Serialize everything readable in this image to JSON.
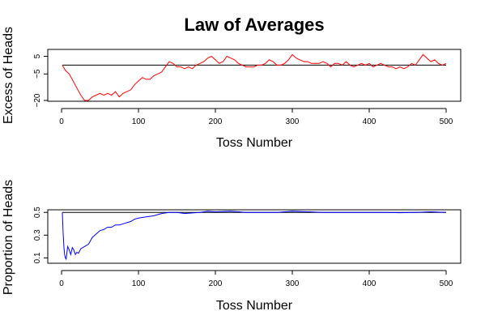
{
  "chart_data": [
    {
      "type": "line",
      "title": "Law of Averages",
      "xlabel": "Toss Number",
      "ylabel": "Excess of Heads",
      "xlim": [
        1,
        500
      ],
      "ylim": [
        -20,
        8
      ],
      "xticks": [
        0,
        100,
        200,
        300,
        400,
        500
      ],
      "yticks": [
        -20,
        -5,
        5
      ],
      "reference_line": 0,
      "series": [
        {
          "color": "#ff0000",
          "x": [
            1,
            5,
            10,
            15,
            20,
            25,
            30,
            35,
            40,
            45,
            50,
            55,
            60,
            65,
            70,
            75,
            80,
            85,
            90,
            95,
            100,
            105,
            110,
            115,
            120,
            125,
            130,
            135,
            140,
            145,
            150,
            155,
            160,
            165,
            170,
            175,
            180,
            185,
            190,
            195,
            200,
            205,
            210,
            215,
            220,
            225,
            230,
            235,
            240,
            245,
            250,
            255,
            260,
            265,
            270,
            275,
            280,
            285,
            290,
            295,
            300,
            305,
            310,
            315,
            320,
            325,
            330,
            335,
            340,
            345,
            350,
            355,
            360,
            365,
            370,
            375,
            380,
            385,
            390,
            395,
            400,
            405,
            410,
            415,
            420,
            425,
            430,
            435,
            440,
            445,
            450,
            455,
            460,
            465,
            470,
            475,
            480,
            485,
            490,
            495,
            500
          ],
          "y": [
            0,
            -3,
            -5,
            -9,
            -13,
            -17,
            -20,
            -20,
            -18,
            -17,
            -16,
            -17,
            -16,
            -17,
            -15,
            -18,
            -16,
            -15,
            -14,
            -11,
            -9,
            -7,
            -8,
            -8,
            -6,
            -5,
            -4,
            -1,
            2,
            1,
            -1,
            -1,
            -2,
            -1,
            -2,
            0,
            1,
            2,
            4,
            5,
            3,
            1,
            2,
            5,
            4,
            3,
            1,
            0,
            -1,
            -1,
            -1,
            0,
            0,
            1,
            3,
            2,
            0,
            0,
            1,
            3,
            6,
            4,
            3,
            2,
            2,
            1,
            1,
            1,
            2,
            1,
            -1,
            1,
            1,
            0,
            2,
            0,
            -1,
            0,
            1,
            0,
            1,
            -1,
            0,
            1,
            0,
            -1,
            -1,
            -2,
            -1,
            -2,
            -1,
            1,
            0,
            3,
            6,
            4,
            2,
            3,
            1,
            0,
            1
          ]
        }
      ]
    },
    {
      "type": "line",
      "title": "",
      "xlabel": "Toss Number",
      "ylabel": "Proportion of Heads",
      "xlim": [
        1,
        500
      ],
      "ylim": [
        0.06,
        0.53
      ],
      "xticks": [
        0,
        100,
        200,
        300,
        400,
        500
      ],
      "yticks": [
        0.1,
        0.3,
        0.5
      ],
      "reference_line": 0.5,
      "series": [
        {
          "color": "#0000ff",
          "x": [
            1,
            2,
            3,
            4,
            5,
            6,
            8,
            10,
            12,
            14,
            16,
            18,
            20,
            22,
            25,
            30,
            35,
            40,
            45,
            50,
            55,
            60,
            65,
            70,
            75,
            80,
            85,
            90,
            95,
            100,
            110,
            120,
            130,
            140,
            150,
            160,
            170,
            180,
            190,
            200,
            220,
            240,
            260,
            280,
            300,
            320,
            340,
            360,
            380,
            400,
            420,
            440,
            460,
            480,
            500
          ],
          "y": [
            0.5,
            0.33,
            0.2,
            0.13,
            0.1,
            0.09,
            0.2,
            0.17,
            0.13,
            0.19,
            0.17,
            0.13,
            0.15,
            0.14,
            0.18,
            0.2,
            0.22,
            0.28,
            0.31,
            0.34,
            0.35,
            0.37,
            0.37,
            0.39,
            0.39,
            0.4,
            0.41,
            0.42,
            0.44,
            0.45,
            0.46,
            0.47,
            0.49,
            0.5,
            0.5,
            0.49,
            0.495,
            0.5,
            0.51,
            0.505,
            0.51,
            0.5,
            0.5,
            0.5,
            0.51,
            0.505,
            0.5,
            0.5,
            0.5,
            0.5,
            0.5,
            0.497,
            0.5,
            0.505,
            0.5
          ]
        }
      ]
    }
  ]
}
